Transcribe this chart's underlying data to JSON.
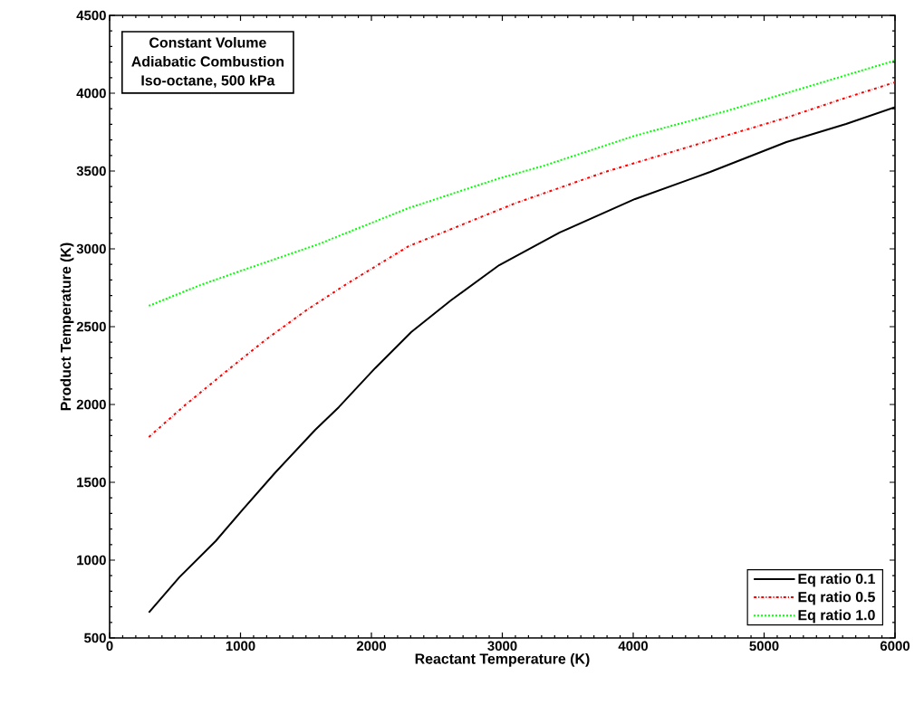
{
  "chart_data": {
    "type": "line",
    "xlabel": "Reactant Temperature (K)",
    "ylabel": "Product Temperature (K)",
    "annotations": [
      "Constant Volume",
      "Adiabatic Combustion",
      "Iso-octane, 500 kPa"
    ],
    "xlim": [
      0,
      6000
    ],
    "ylim": [
      500,
      4500
    ],
    "xticks": [
      0,
      1000,
      2000,
      3000,
      4000,
      5000,
      6000
    ],
    "yticks": [
      500,
      1000,
      1500,
      2000,
      2500,
      3000,
      3500,
      4000,
      4500
    ],
    "legend": "bottom right",
    "grid": false,
    "marker": "none",
    "series": [
      {
        "name": "Eq ratio 0.1",
        "color": "#000000",
        "line_style": "solid",
        "x": [
          300,
          533,
          810,
          1017,
          1267,
          1571,
          1751,
          2028,
          2304,
          2609,
          2976,
          3439,
          4014,
          4588,
          5170,
          5626,
          6000
        ],
        "values": [
          663,
          890,
          1122,
          1325,
          1564,
          1837,
          1983,
          2233,
          2465,
          2670,
          2895,
          3105,
          3320,
          3494,
          3686,
          3802,
          3910
        ]
      },
      {
        "name": "Eq ratio 0.5",
        "color": "#ff0000",
        "line_style": "dashdot",
        "x": [
          300,
          574,
          920,
          1197,
          1502,
          1820,
          2284,
          2630,
          3093,
          3785,
          4478,
          5170,
          5626,
          6000
        ],
        "values": [
          1791,
          1994,
          2233,
          2419,
          2605,
          2779,
          3017,
          3134,
          3291,
          3494,
          3669,
          3843,
          3971,
          4070
        ]
      },
      {
        "name": "Eq ratio 1.0",
        "color": "#00ff00",
        "line_style": "dotted",
        "x": [
          300,
          692,
          990,
          1592,
          2284,
          2976,
          3322,
          4014,
          4706,
          5398,
          6000
        ],
        "values": [
          2634,
          2767,
          2855,
          3029,
          3262,
          3453,
          3535,
          3727,
          3884,
          4058,
          4210
        ]
      }
    ]
  }
}
